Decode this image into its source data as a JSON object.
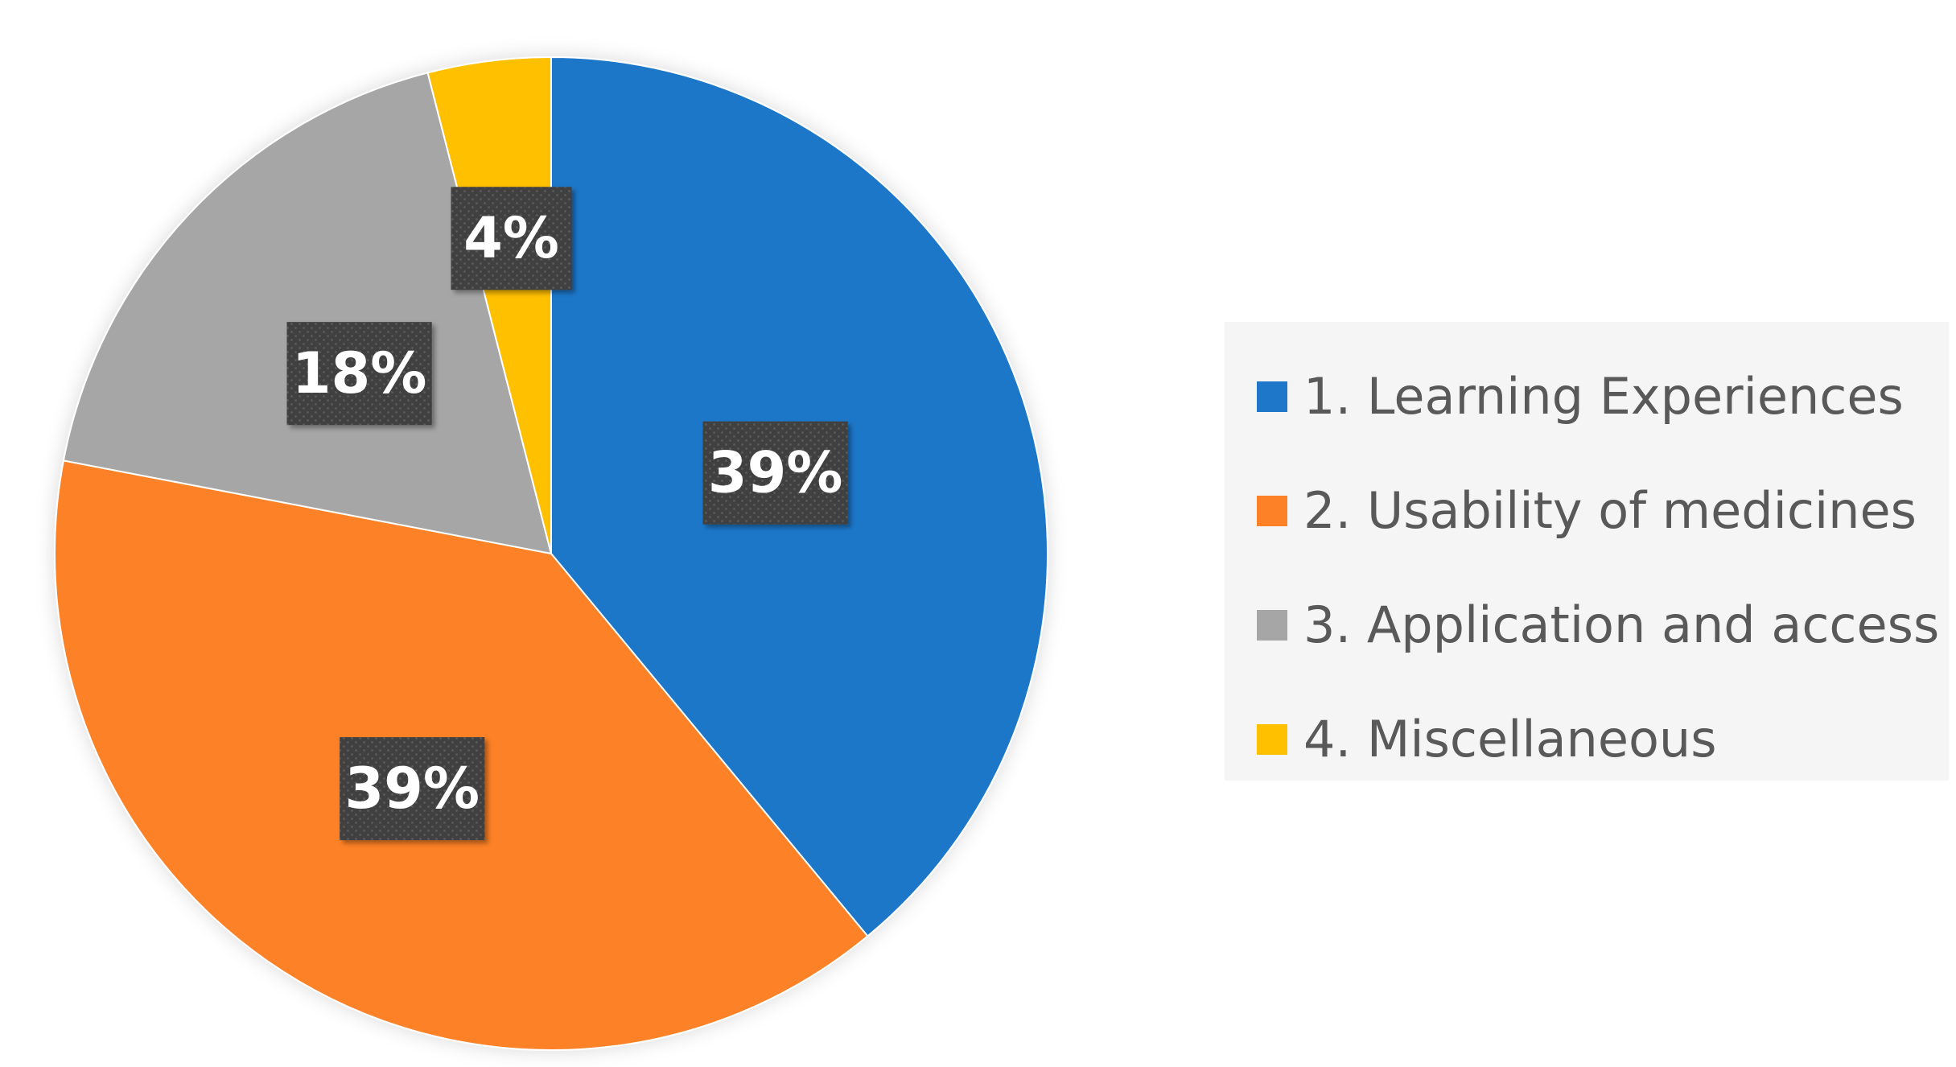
{
  "chart_data": {
    "type": "pie",
    "title": "",
    "categories": [
      "1. Learning Experiences",
      "2. Usability of medicines",
      "3. Application and access",
      "4. Miscellaneous"
    ],
    "values": [
      39,
      39,
      18,
      4
    ],
    "data_labels": [
      "39%",
      "39%",
      "18%",
      "4%"
    ],
    "colors": [
      "#1f77c9",
      "#fd8126",
      "#a6a6a6",
      "#ffc000"
    ],
    "start_angle_deg": 0,
    "direction": "clockwise",
    "legend_position": "right",
    "label_style": {
      "background": "#404040",
      "text_color": "#ffffff"
    }
  }
}
